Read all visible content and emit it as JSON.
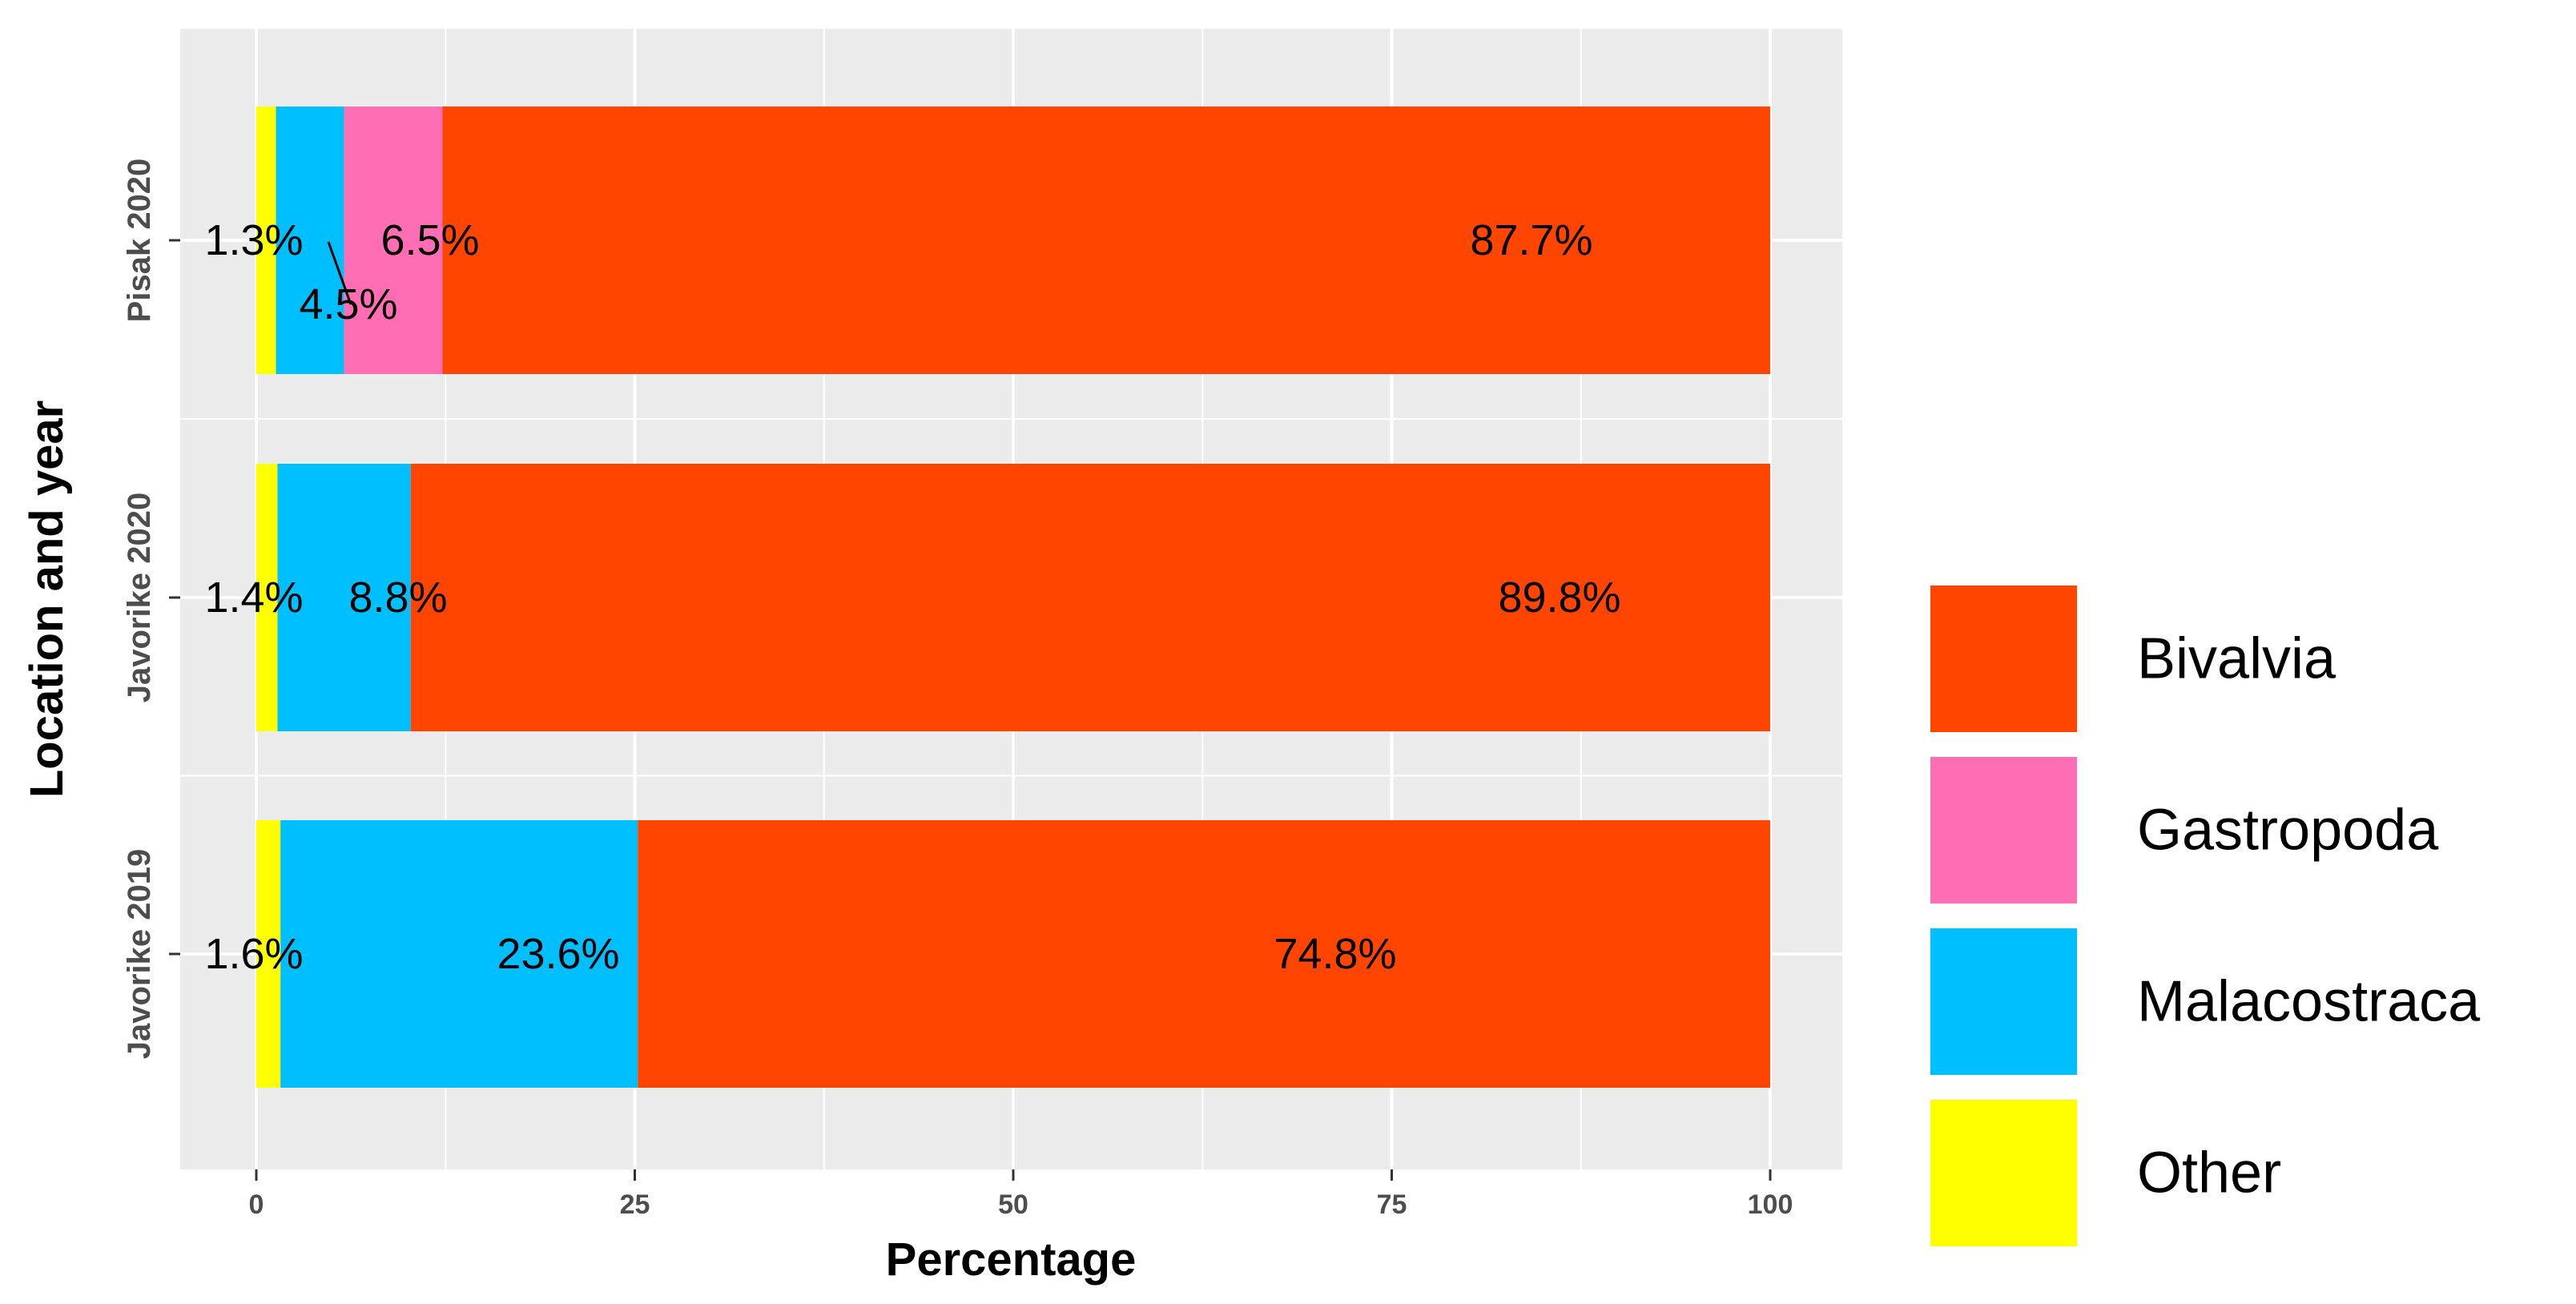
{
  "chart_data": {
    "type": "bar",
    "orientation": "horizontal",
    "stacked": true,
    "xlabel": "Percentage",
    "ylabel": "Location and year",
    "xlim": [
      0,
      100
    ],
    "x_ticks": [
      0,
      25,
      50,
      75,
      100
    ],
    "grid": true,
    "legend_position": "right",
    "categories": [
      "Javorike 2019",
      "Javorike 2020",
      "Pisak 2020"
    ],
    "series": [
      {
        "name": "Other",
        "color": "#FFFF00",
        "values": [
          1.6,
          1.4,
          1.3
        ]
      },
      {
        "name": "Malacostraca",
        "color": "#00BFFF",
        "values": [
          23.6,
          8.8,
          4.5
        ]
      },
      {
        "name": "Gastropoda",
        "color": "#FF6EB4",
        "values": [
          0,
          0,
          6.5
        ]
      },
      {
        "name": "Bivalvia",
        "color": "#FF4500",
        "values": [
          74.8,
          89.8,
          87.7
        ]
      }
    ],
    "data_labels": [
      [
        "1.6%",
        "23.6%",
        "",
        "74.8%"
      ],
      [
        "1.4%",
        "8.8%",
        "",
        "89.8%"
      ],
      [
        "1.3%",
        "4.5%",
        "6.5%",
        "87.7%"
      ]
    ],
    "legend_order": [
      "Bivalvia",
      "Gastropoda",
      "Malacostraca",
      "Other"
    ]
  }
}
